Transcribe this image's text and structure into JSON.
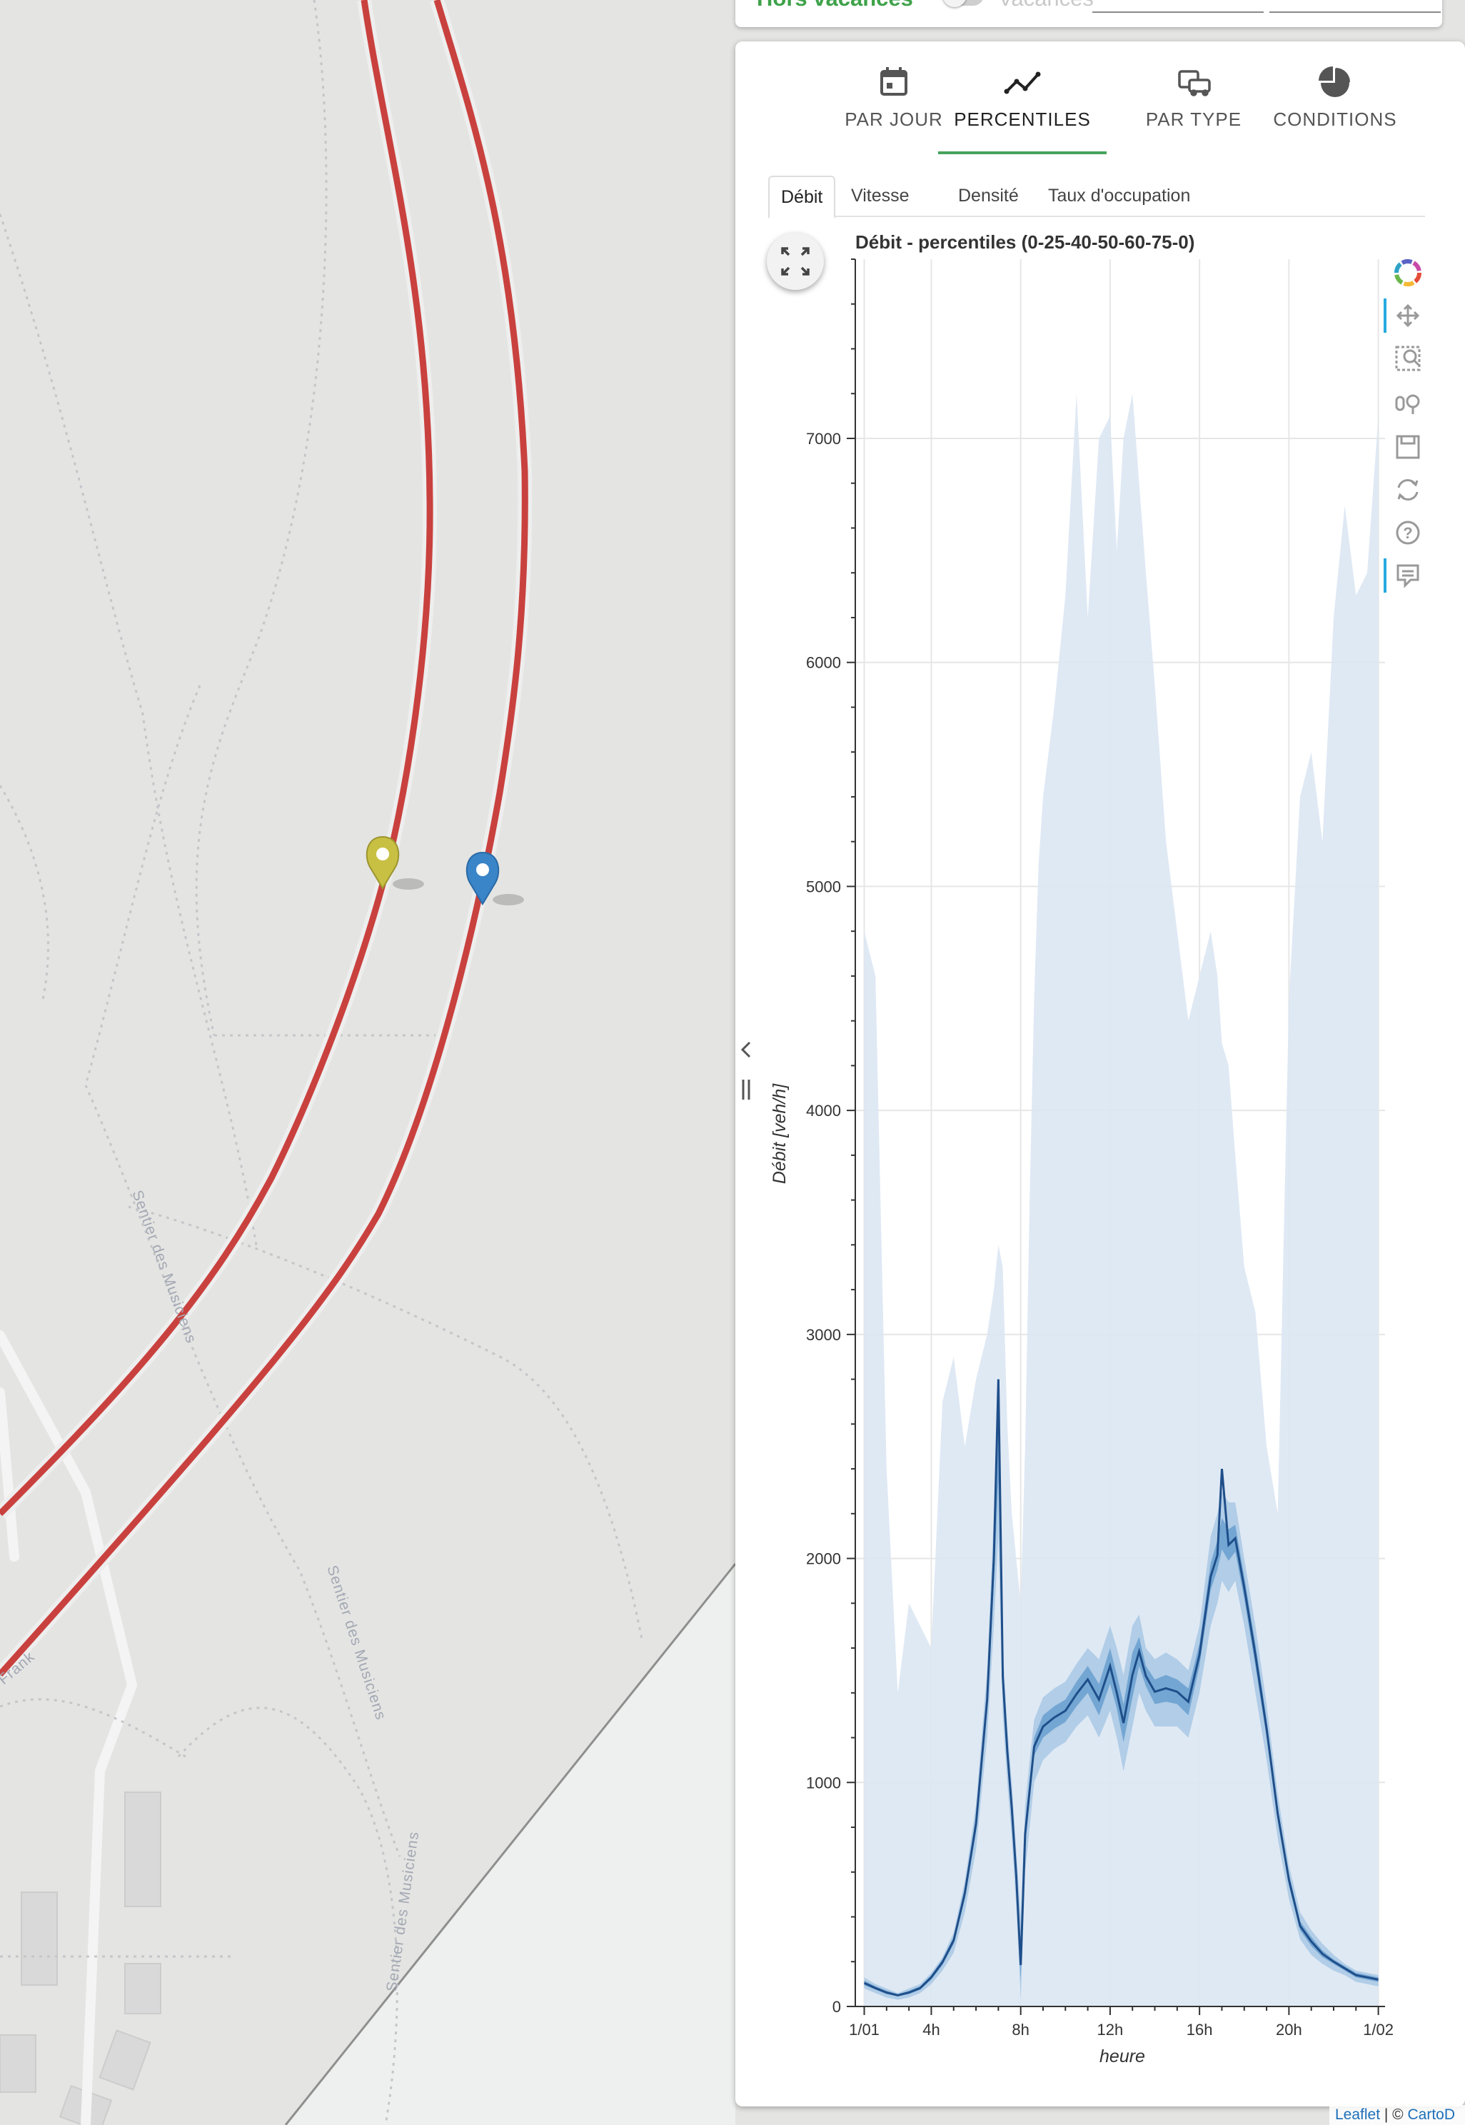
{
  "map": {
    "street_labels": [
      "Sentier des Musiciens",
      "Sentier des Musiciens",
      "Sentier des Musiciens",
      "Frank"
    ],
    "markers": [
      {
        "name": "yellow-marker",
        "color": "#c8c043"
      },
      {
        "name": "blue-marker",
        "color": "#3a84c8"
      }
    ],
    "road_color": "#c9413e"
  },
  "filters": {
    "holiday_label": "Hors vacances",
    "vacation_label": "Vacances"
  },
  "tabs": [
    {
      "label": "PAR JOUR",
      "icon": "calendar-icon"
    },
    {
      "label": "PERCENTILES",
      "icon": "line-chart-icon",
      "active": true
    },
    {
      "label": "PAR TYPE",
      "icon": "vehicles-icon"
    },
    {
      "label": "CONDITIONS",
      "icon": "pie-chart-icon"
    }
  ],
  "subtabs": [
    {
      "label": "Débit",
      "active": true
    },
    {
      "label": "Vitesse"
    },
    {
      "label": "Densité"
    },
    {
      "label": "Taux d'occupation"
    }
  ],
  "toolbar": [
    "bokeh-logo-icon",
    "pan-icon",
    "box-zoom-icon",
    "wheel-zoom-icon",
    "save-icon",
    "reset-icon",
    "help-icon",
    "hover-icon"
  ],
  "attribution": {
    "leaflet": "Leaflet",
    "sep": " | © ",
    "carto": "CartoD"
  },
  "chart_data": {
    "type": "area",
    "title": "Débit - percentiles (0-25-40-50-60-75-0)",
    "xlabel": "heure",
    "ylabel": "Débit [veh/h]",
    "xlim": [
      0.6,
      24.3
    ],
    "ylim": [
      0,
      7800
    ],
    "x_ticks": [
      1,
      4,
      8,
      12,
      16,
      20,
      24
    ],
    "x_tick_labels": [
      "1/01",
      "4h",
      "8h",
      "12h",
      "16h",
      "20h",
      "1/02"
    ],
    "y_ticks": [
      0,
      1000,
      2000,
      3000,
      4000,
      5000,
      6000,
      7000
    ],
    "grid": true,
    "x": [
      1,
      1.5,
      2,
      2.5,
      3,
      3.5,
      4,
      4.5,
      5,
      5.5,
      6,
      6.5,
      6.8,
      7,
      7.2,
      7.4,
      7.6,
      7.8,
      8,
      8.2,
      8.4,
      8.6,
      8.8,
      9,
      9.5,
      10,
      10.5,
      11,
      11.5,
      12,
      12.3,
      12.6,
      13,
      13.3,
      13.6,
      14,
      14.5,
      15,
      15.5,
      16,
      16.5,
      16.8,
      17,
      17.3,
      17.6,
      18,
      18.5,
      19,
      19.5,
      20,
      20.5,
      21,
      21.5,
      22,
      22.5,
      23,
      23.5,
      24
    ],
    "series": [
      {
        "name": "p0-p100",
        "lower": [
          0,
          0,
          0,
          0,
          0,
          0,
          0,
          0,
          0,
          0,
          0,
          0,
          0,
          0,
          0,
          0,
          0,
          0,
          0,
          0,
          0,
          0,
          0,
          0,
          0,
          0,
          0,
          0,
          0,
          0,
          0,
          0,
          0,
          0,
          0,
          0,
          0,
          0,
          0,
          0,
          0,
          0,
          0,
          0,
          0,
          0,
          0,
          0,
          0,
          0,
          0,
          0,
          0,
          0,
          0,
          0,
          0,
          0
        ],
        "upper": [
          4800,
          4600,
          2400,
          1400,
          1800,
          1700,
          1600,
          2700,
          2900,
          2500,
          2800,
          3000,
          3200,
          3400,
          3300,
          2600,
          2200,
          2000,
          1800,
          2500,
          3600,
          4500,
          5100,
          5400,
          5800,
          6300,
          7200,
          6200,
          7000,
          7100,
          6500,
          7000,
          7200,
          6800,
          6400,
          5900,
          5200,
          4800,
          4400,
          4600,
          4800,
          4600,
          4300,
          4200,
          3800,
          3300,
          3100,
          2500,
          2200,
          4500,
          5400,
          5600,
          5200,
          6200,
          6700,
          6300,
          6400,
          7100
        ]
      },
      {
        "name": "p25-p75",
        "lower": [
          80,
          60,
          40,
          30,
          40,
          60,
          100,
          160,
          240,
          420,
          700,
          1200,
          1700,
          2100,
          1300,
          1000,
          750,
          450,
          30,
          600,
          800,
          1000,
          1050,
          1100,
          1150,
          1180,
          1250,
          1300,
          1200,
          1320,
          1200,
          1050,
          1250,
          1400,
          1320,
          1250,
          1250,
          1250,
          1200,
          1400,
          1700,
          1800,
          1900,
          1850,
          1900,
          1700,
          1400,
          1100,
          750,
          480,
          300,
          230,
          190,
          160,
          140,
          110,
          100,
          90
        ],
        "upper": [
          130,
          100,
          80,
          60,
          80,
          100,
          150,
          220,
          330,
          560,
          900,
          1500,
          2200,
          2750,
          1600,
          1250,
          1000,
          700,
          400,
          900,
          1100,
          1280,
          1330,
          1380,
          1420,
          1450,
          1530,
          1600,
          1550,
          1700,
          1600,
          1480,
          1700,
          1750,
          1600,
          1550,
          1580,
          1550,
          1500,
          1700,
          2100,
          2200,
          2300,
          2250,
          2250,
          2000,
          1700,
          1350,
          950,
          630,
          420,
          340,
          280,
          230,
          190,
          160,
          150,
          140
        ]
      },
      {
        "name": "p40-p60",
        "lower": [
          95,
          75,
          55,
          45,
          55,
          75,
          120,
          185,
          280,
          480,
          780,
          1320,
          1900,
          2350,
          1420,
          1100,
          850,
          550,
          120,
          720,
          920,
          1120,
          1160,
          1200,
          1240,
          1270,
          1340,
          1400,
          1300,
          1440,
          1330,
          1180,
          1380,
          1520,
          1430,
          1350,
          1360,
          1350,
          1300,
          1520,
          1860,
          1950,
          2040,
          1990,
          2030,
          1820,
          1520,
          1200,
          830,
          540,
          340,
          270,
          220,
          190,
          160,
          130,
          120,
          110
        ],
        "upper": [
          115,
          90,
          70,
          55,
          70,
          90,
          140,
          210,
          310,
          530,
          850,
          1420,
          2100,
          2600,
          1520,
          1180,
          920,
          620,
          250,
          820,
          1010,
          1200,
          1250,
          1300,
          1340,
          1370,
          1450,
          1520,
          1440,
          1600,
          1480,
          1350,
          1580,
          1650,
          1520,
          1460,
          1480,
          1460,
          1420,
          1620,
          1980,
          2080,
          2180,
          2130,
          2150,
          1920,
          1620,
          1280,
          890,
          590,
          380,
          310,
          250,
          210,
          180,
          150,
          140,
          130
        ]
      },
      {
        "name": "p50",
        "values": [
          105,
          82,
          62,
          50,
          62,
          82,
          130,
          198,
          295,
          505,
          815,
          1370,
          2000,
          2800,
          1470,
          1140,
          885,
          585,
          185,
          770,
          965,
          1160,
          1205,
          1250,
          1290,
          1320,
          1395,
          1460,
          1370,
          1520,
          1400,
          1265,
          1480,
          1585,
          1475,
          1405,
          1420,
          1405,
          1360,
          1570,
          1920,
          2015,
          2400,
          2060,
          2090,
          1870,
          1570,
          1240,
          860,
          565,
          360,
          290,
          235,
          200,
          170,
          140,
          130,
          120
        ]
      }
    ]
  }
}
